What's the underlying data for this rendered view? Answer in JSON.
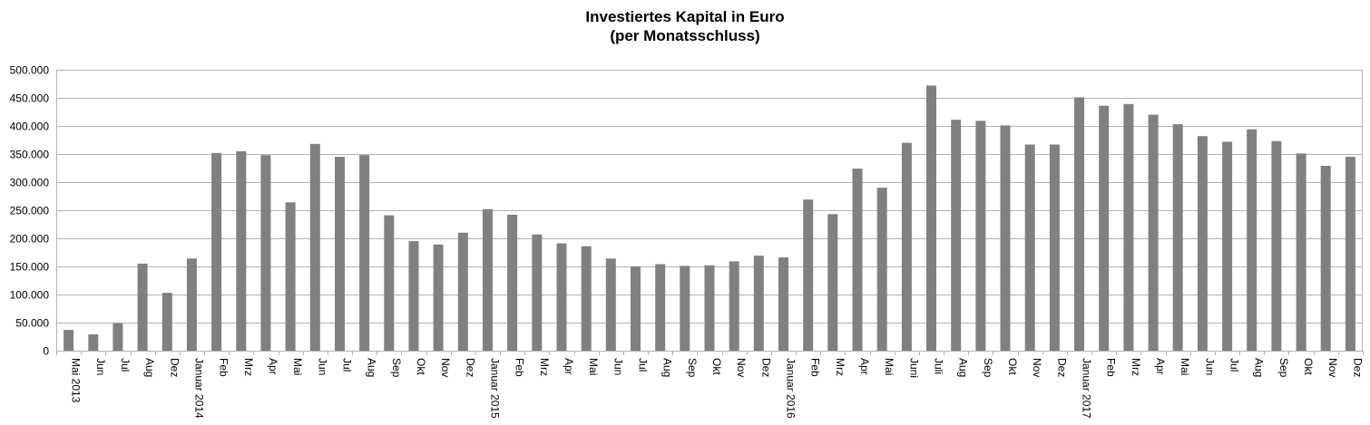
{
  "chart_data": {
    "type": "bar",
    "title": "Investiertes Kapital in Euro",
    "subtitle": "(per Monatsschluss)",
    "xlabel": "",
    "ylabel": "",
    "ylim": [
      0,
      500000
    ],
    "yticks": [
      0,
      50000,
      100000,
      150000,
      200000,
      250000,
      300000,
      350000,
      400000,
      450000,
      500000
    ],
    "ytick_labels": [
      "0",
      "50.000",
      "100.000",
      "150.000",
      "200.000",
      "250.000",
      "300.000",
      "350.000",
      "400.000",
      "450.000",
      "500.000"
    ],
    "grid": true,
    "bar_color": "#808080",
    "categories": [
      "Mai 2013",
      "Jun",
      "Jul",
      "Aug",
      "Dez",
      "Januar 2014",
      "Feb",
      "Mrz",
      "Apr",
      "Mai",
      "Jun",
      "Jul",
      "Aug",
      "Sep",
      "Okt",
      "Nov",
      "Dez",
      "Januar 2015",
      "Feb",
      "Mrz",
      "Apr",
      "Mai",
      "Jun",
      "Jul",
      "Aug",
      "Sep",
      "Okt",
      "Nov",
      "Dez",
      "Januar 2016",
      "Feb",
      "Mrz",
      "Apr",
      "Mai",
      "Juni",
      "Juli",
      "Aug",
      "Sep",
      "Okt",
      "Nov",
      "Dez",
      "Januar 2017",
      "Feb",
      "Mrz",
      "Apr",
      "Mai",
      "Jun",
      "Jul",
      "Aug",
      "Sep",
      "Okt",
      "Nov",
      "Dez"
    ],
    "values": [
      37000,
      29000,
      49000,
      155000,
      103000,
      164000,
      352000,
      355000,
      348000,
      264000,
      368000,
      345000,
      348000,
      241000,
      195000,
      189000,
      210000,
      252000,
      242000,
      207000,
      191000,
      186000,
      164000,
      150000,
      154000,
      151000,
      152000,
      159000,
      169000,
      166000,
      269000,
      243000,
      324000,
      290000,
      370000,
      472000,
      411000,
      409000,
      401000,
      367000,
      367000,
      451000,
      436000,
      439000,
      420000,
      403000,
      382000,
      372000,
      394000,
      373000,
      351000,
      329000,
      345000
    ]
  }
}
